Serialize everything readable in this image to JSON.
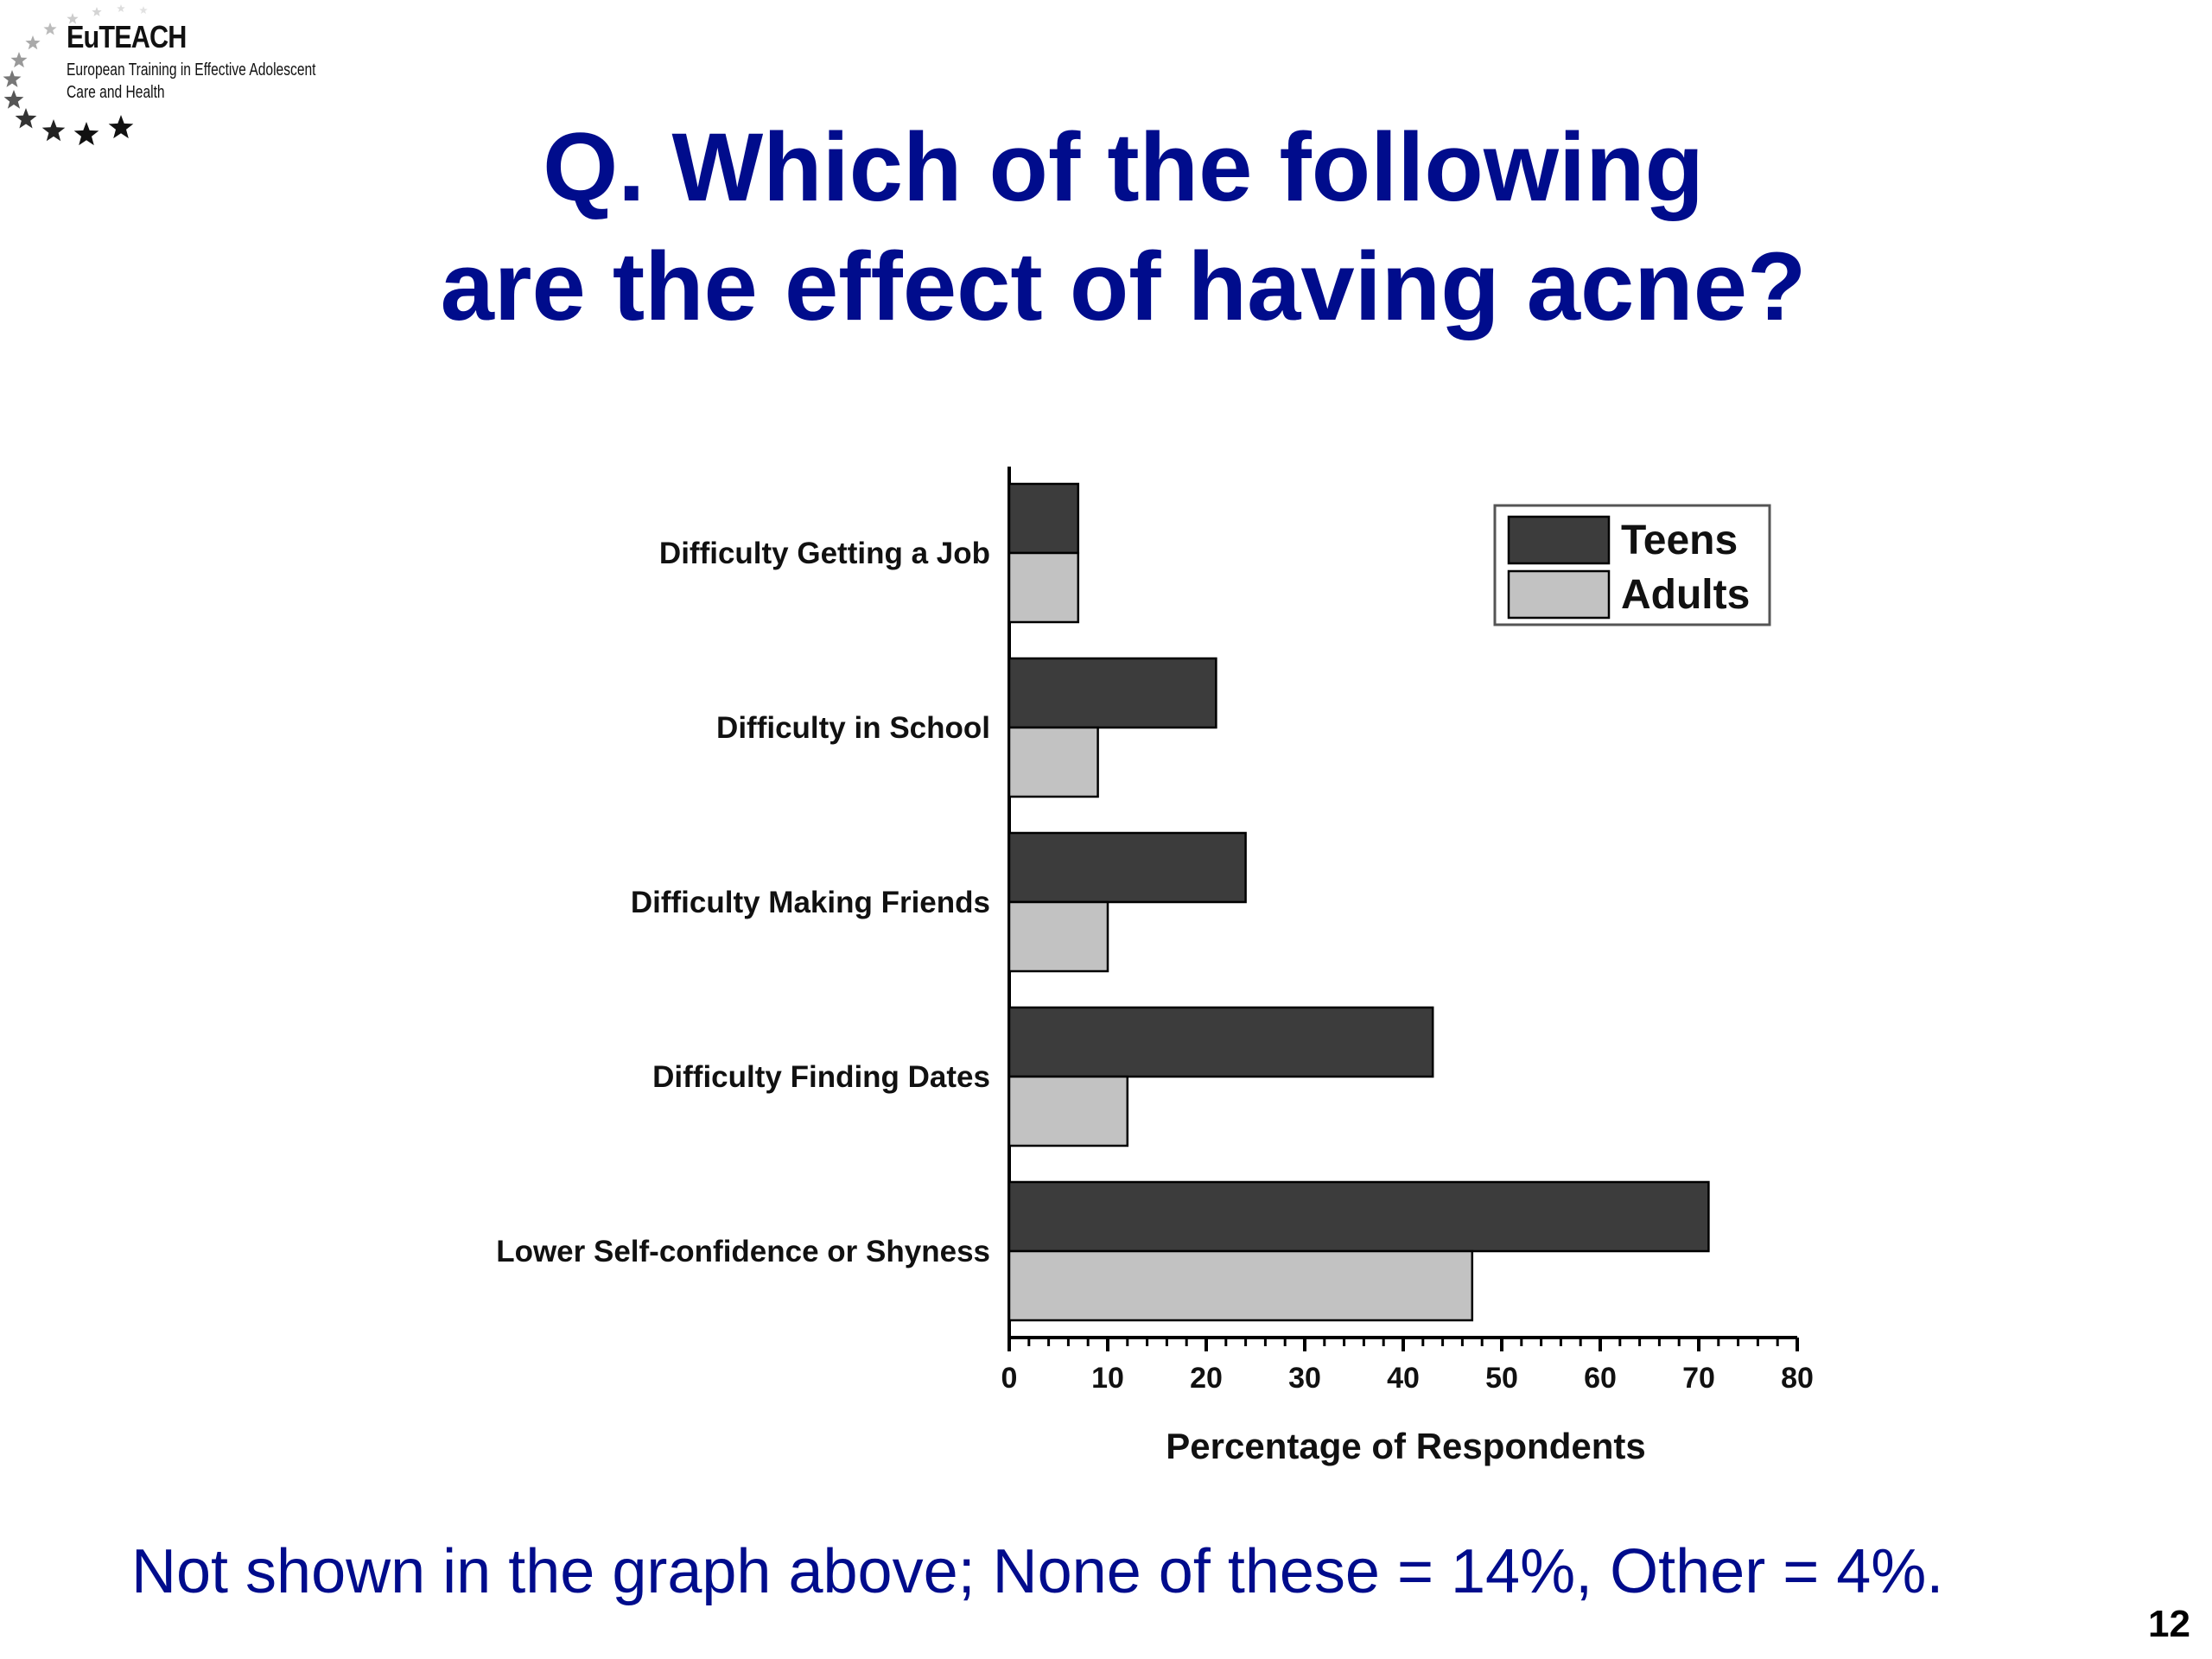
{
  "logo": {
    "title": "EuTEACH",
    "line1": "European Training in Effective Adolescent",
    "line2": "Care and Health"
  },
  "title_line1": "Q. Which of the following",
  "title_line2": "are the effect of having acne?",
  "footnote": "Not shown in the graph above; None of these = 14%, Other = 4%.",
  "page_number": "12",
  "colors": {
    "title": "#000c8c",
    "teens": "#3c3c3c",
    "adults": "#c2c2c2"
  },
  "chart_data": {
    "type": "bar",
    "orientation": "horizontal",
    "categories": [
      "Difficulty Getting a Job",
      "Difficulty in School",
      "Difficulty Making Friends",
      "Difficulty Finding Dates",
      "Lower Self-confidence or Shyness"
    ],
    "series": [
      {
        "name": "Teens",
        "values": [
          7,
          21,
          24,
          43,
          71
        ]
      },
      {
        "name": "Adults",
        "values": [
          7,
          9,
          10,
          12,
          47
        ]
      }
    ],
    "xlabel": "Percentage of Respondents",
    "ylabel": "",
    "xlim": [
      0,
      80
    ],
    "xticks": [
      "0",
      "10",
      "20",
      "30",
      "40",
      "50",
      "60",
      "70",
      "80"
    ],
    "legend": "top-right",
    "grid": false
  }
}
